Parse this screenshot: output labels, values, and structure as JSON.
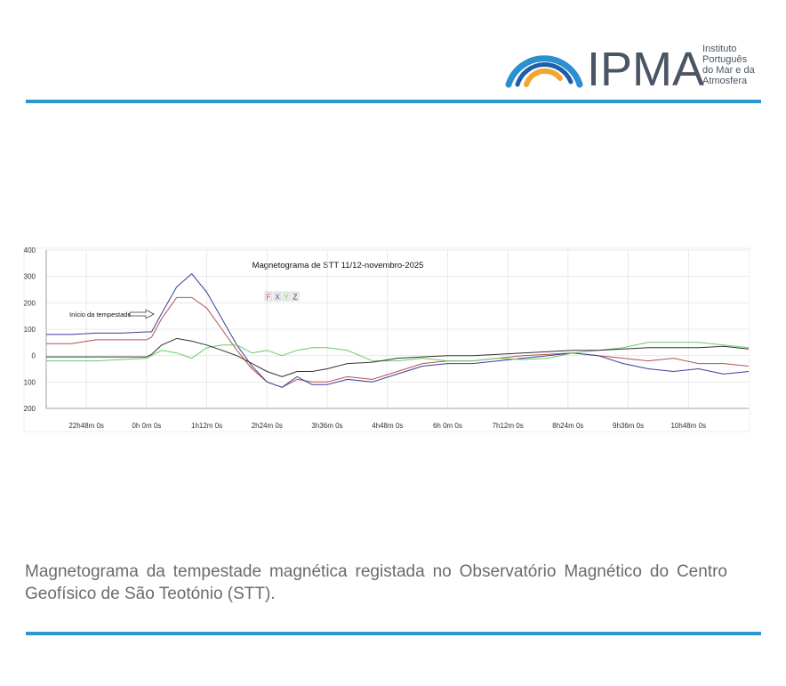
{
  "header": {
    "logo": "IPMA",
    "institute": [
      "Instituto",
      "Português",
      "do Mar e da",
      "Atmosfera"
    ]
  },
  "chart_data": {
    "type": "line",
    "title": "Magnetograma de STT 11/12-novembro-2025",
    "annotation": "Início da tempestade",
    "x": [
      -2,
      -1.5,
      -1,
      -0.5,
      0,
      0.1,
      0.3,
      0.6,
      0.9,
      1.2,
      1.5,
      1.8,
      2.1,
      2.4,
      2.7,
      3.0,
      3.3,
      3.6,
      4.0,
      4.5,
      5.0,
      5.5,
      6.0,
      6.5,
      7.0,
      7.5,
      8.0,
      8.5,
      9.0,
      9.5,
      10.0,
      10.5,
      11.0,
      11.5,
      12.0
    ],
    "series": [
      {
        "name": "F",
        "color": "#b5524f",
        "values": [
          45,
          45,
          60,
          60,
          60,
          70,
          140,
          220,
          220,
          180,
          100,
          20,
          -50,
          -100,
          -120,
          -90,
          -100,
          -100,
          -80,
          -90,
          -60,
          -30,
          -20,
          -20,
          -10,
          0,
          5,
          10,
          0,
          -10,
          -20,
          -10,
          -30,
          -30,
          -40
        ]
      },
      {
        "name": "X",
        "color": "#3b3c9c",
        "values": [
          80,
          80,
          85,
          85,
          90,
          90,
          160,
          260,
          310,
          240,
          140,
          40,
          -40,
          -100,
          -120,
          -80,
          -110,
          -110,
          -90,
          -100,
          -70,
          -40,
          -30,
          -30,
          -20,
          -10,
          0,
          10,
          0,
          -30,
          -50,
          -60,
          -50,
          -70,
          -60
        ]
      },
      {
        "name": "Y",
        "color": "#66cc66",
        "values": [
          -20,
          -20,
          -20,
          -15,
          -10,
          0,
          20,
          10,
          -10,
          30,
          40,
          40,
          10,
          20,
          0,
          20,
          30,
          30,
          20,
          -20,
          -20,
          -10,
          -20,
          -20,
          -10,
          -15,
          -10,
          10,
          20,
          30,
          50,
          50,
          50,
          40,
          30
        ]
      },
      {
        "name": "Z",
        "color": "#333333",
        "values": [
          -5,
          -5,
          -5,
          -5,
          -5,
          5,
          40,
          65,
          55,
          40,
          20,
          0,
          -30,
          -60,
          -80,
          -60,
          -60,
          -50,
          -30,
          -25,
          -10,
          -5,
          0,
          0,
          5,
          10,
          15,
          20,
          20,
          25,
          30,
          30,
          30,
          35,
          25
        ]
      }
    ],
    "xlim": [
      -2,
      12
    ],
    "xticks": [
      {
        "value": -1.2,
        "label": "22h48m 0s"
      },
      {
        "value": 0,
        "label": "0h 0m 0s"
      },
      {
        "value": 1.2,
        "label": "1h12m 0s"
      },
      {
        "value": 2.4,
        "label": "2h24m 0s"
      },
      {
        "value": 3.6,
        "label": "3h36m 0s"
      },
      {
        "value": 4.8,
        "label": "4h48m 0s"
      },
      {
        "value": 6.0,
        "label": "6h 0m 0s"
      },
      {
        "value": 7.2,
        "label": "7h12m 0s"
      },
      {
        "value": 8.4,
        "label": "8h24m 0s"
      },
      {
        "value": 9.6,
        "label": "9h36m 0s"
      },
      {
        "value": 10.8,
        "label": "10h48m 0s"
      }
    ],
    "ylim": [
      -200,
      400
    ],
    "yticks": [
      400,
      300,
      200,
      100,
      0,
      {
        "value": -100,
        "label": "100"
      },
      {
        "value": -200,
        "label": "200"
      }
    ],
    "grid": true
  },
  "caption": "Magnetograma da tempestade magnética registada no Observatório Magnético do Centro Geofísico de São Teotónio (STT)."
}
